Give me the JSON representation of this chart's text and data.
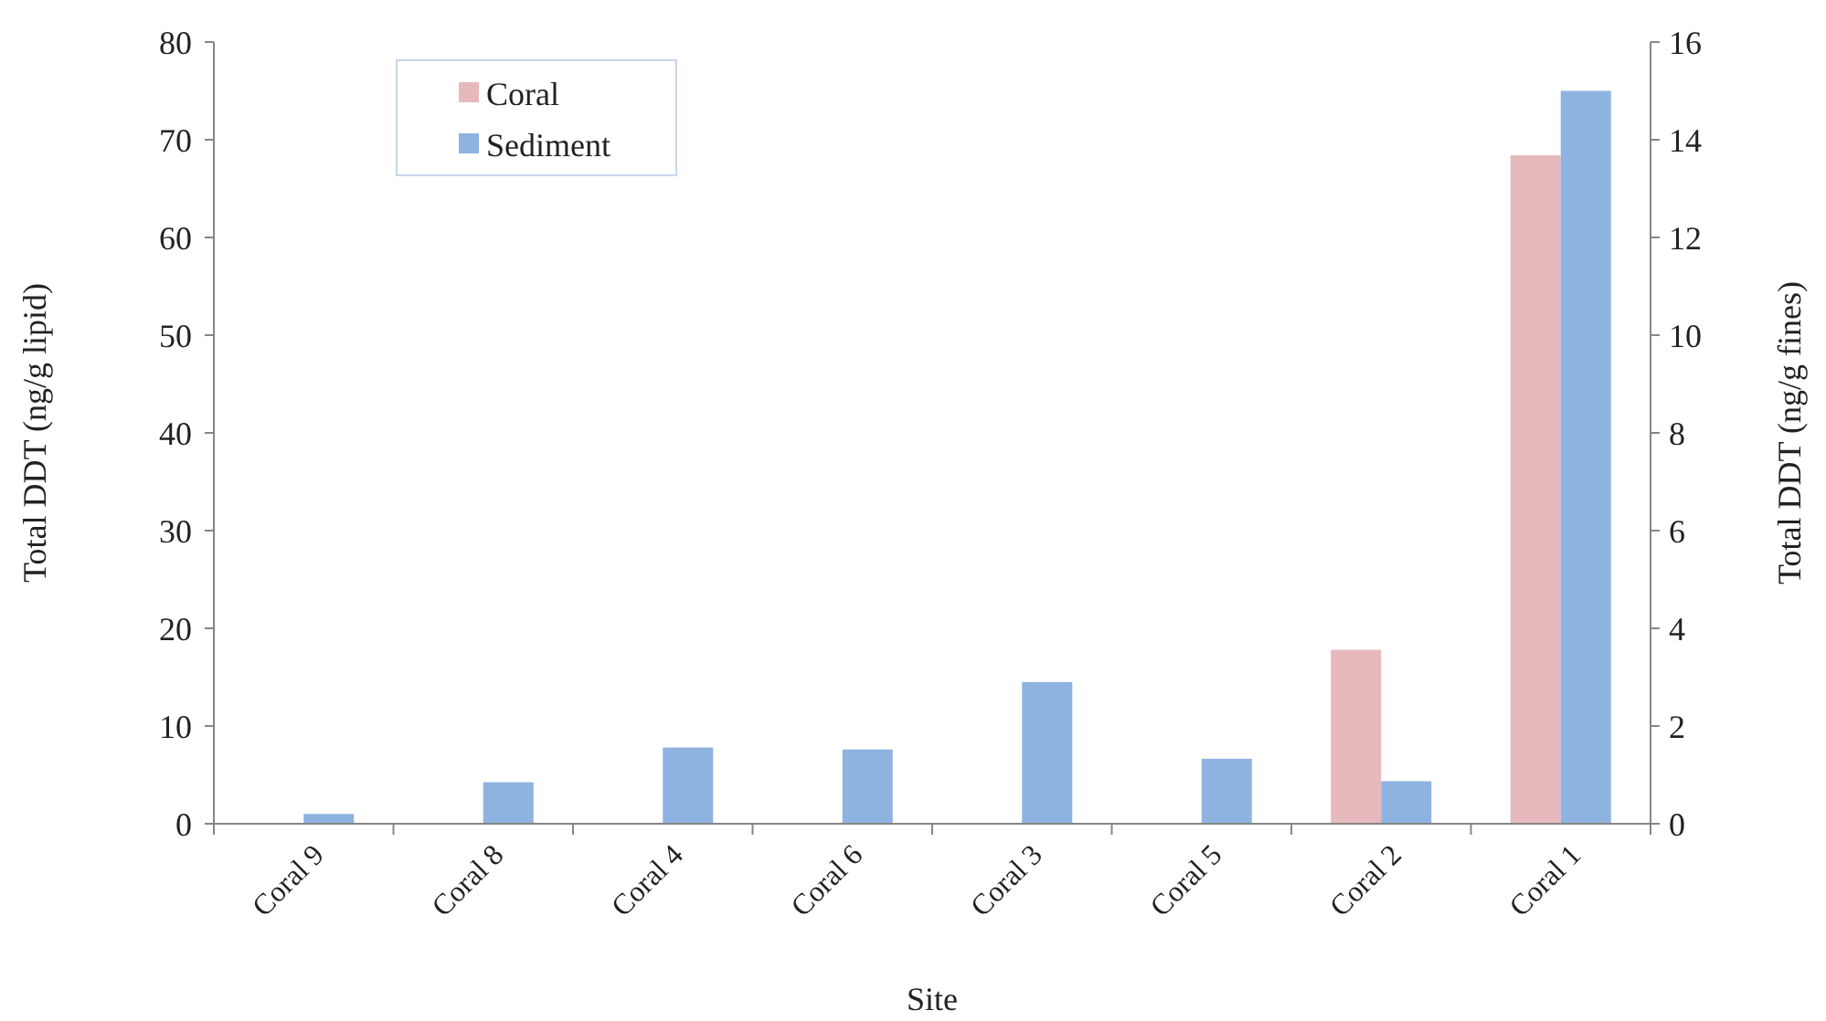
{
  "chart_data": {
    "type": "bar",
    "xlabel": "Site",
    "ylabel": "Total DDT (ng/g lipid)",
    "y2label": "Total DDT (ng/g fines)",
    "categories": [
      "Coral 9",
      "Coral 8",
      "Coral 4",
      "Coral 6",
      "Coral 3",
      "Coral 5",
      "Coral 2",
      "Coral 1"
    ],
    "series": [
      {
        "name": "Coral",
        "color": "#e6b9bc",
        "values": [
          null,
          null,
          null,
          null,
          null,
          null,
          17.8,
          68.4
        ]
      },
      {
        "name": "Sediment",
        "color": "#8eb3e0",
        "axis": "y2",
        "values": [
          0.2,
          0.85,
          1.56,
          1.52,
          2.9,
          1.33,
          0.87,
          15.0
        ]
      }
    ],
    "ylim": [
      0,
      80
    ],
    "yticks": [
      0,
      10,
      20,
      30,
      40,
      50,
      60,
      70,
      80
    ],
    "y2lim": [
      0,
      16
    ],
    "y2ticks": [
      0,
      2,
      4,
      6,
      8,
      10,
      12,
      14,
      16
    ],
    "grid": false,
    "legend": "top left"
  }
}
